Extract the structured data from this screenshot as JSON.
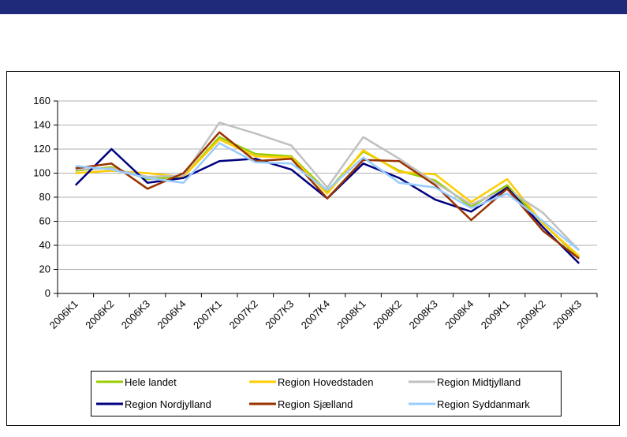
{
  "chart_data": {
    "type": "line",
    "categories": [
      "2006K1",
      "2006K2",
      "2006K3",
      "2006K4",
      "2007K1",
      "2007K2",
      "2007K3",
      "2007K4",
      "2008K1",
      "2008K2",
      "2008K3",
      "2008K4",
      "2009K1",
      "2009K2",
      "2009K3"
    ],
    "series": [
      {
        "name": "Hele landet",
        "color": "#99cc00",
        "values": [
          102,
          105,
          95,
          97,
          130,
          116,
          114,
          85,
          118,
          102,
          94,
          72,
          90,
          58,
          30
        ]
      },
      {
        "name": "Region Hovedstaden",
        "color": "#ffcc00",
        "values": [
          100,
          102,
          100,
          97,
          128,
          114,
          113,
          83,
          119,
          101,
          99,
          76,
          95,
          58,
          31
        ]
      },
      {
        "name": "Region Midtjylland",
        "color": "#c0c0c0",
        "values": [
          103,
          104,
          97,
          98,
          142,
          133,
          123,
          88,
          130,
          112,
          92,
          74,
          87,
          67,
          36
        ]
      },
      {
        "name": "Region Nordjylland",
        "color": "#000080",
        "values": [
          90,
          120,
          92,
          96,
          110,
          112,
          103,
          79,
          108,
          96,
          78,
          68,
          88,
          55,
          25
        ]
      },
      {
        "name": "Region Sjælland",
        "color": "#993300",
        "values": [
          104,
          108,
          87,
          100,
          134,
          110,
          112,
          79,
          111,
          110,
          90,
          61,
          87,
          52,
          29
        ]
      },
      {
        "name": "Region Syddanmark",
        "color": "#99ccff",
        "values": [
          106,
          103,
          96,
          92,
          125,
          109,
          108,
          86,
          113,
          92,
          88,
          71,
          83,
          60,
          36
        ]
      }
    ],
    "ylim": [
      0,
      160
    ],
    "yticks": [
      0,
      20,
      40,
      60,
      80,
      100,
      120,
      140,
      160
    ],
    "grid": true
  }
}
